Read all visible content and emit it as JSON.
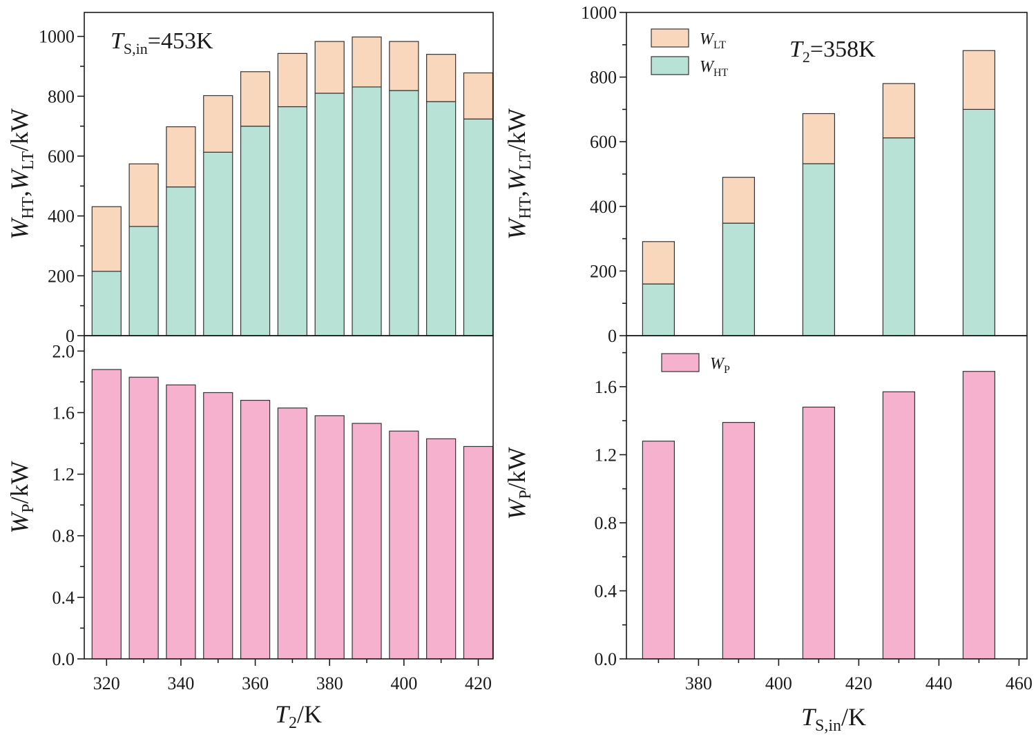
{
  "colors": {
    "ht": "#b8e2d6",
    "lt": "#f9d7bd",
    "p": "#f6b1cf"
  },
  "chart_data": [
    {
      "id": "left",
      "type": "bar",
      "stacked_top": {
        "categories": [
          320,
          330,
          340,
          350,
          360,
          370,
          380,
          390,
          400,
          410,
          420
        ],
        "series": [
          {
            "name": "W_HT",
            "values": [
              215,
              365,
              497,
              613,
              700,
              765,
              810,
              831,
              819,
              782,
              724
            ]
          },
          {
            "name": "W_LT",
            "values": [
              216,
              209,
              201,
              189,
              182,
              178,
              173,
              167,
              164,
              158,
              154
            ]
          }
        ],
        "ylim": [
          0,
          1080
        ],
        "yticks": [
          0,
          200,
          400,
          600,
          800,
          1000
        ],
        "ylabel": {
          "main": "W",
          "sub1": "HT",
          "sep": ",",
          "main2": "W",
          "sub2": "LT",
          "unit": "/kW"
        },
        "annotation": {
          "main": "T",
          "sub": "S,in",
          "rest": "=453K"
        }
      },
      "bottom": {
        "series": [
          {
            "name": "W_P",
            "values": [
              1.88,
              1.83,
              1.78,
              1.73,
              1.68,
              1.63,
              1.58,
              1.53,
              1.48,
              1.43,
              1.38
            ]
          }
        ],
        "ylim": [
          0,
          2.1
        ],
        "yticks": [
          "0.0",
          "0.4",
          "0.8",
          "1.2",
          "1.6",
          "2.0"
        ],
        "ylabel": {
          "main": "W",
          "sub": "P",
          "unit": "/kW"
        }
      },
      "xlim": [
        314,
        424
      ],
      "xticks": [
        320,
        340,
        360,
        380,
        400,
        420
      ],
      "xlabel": {
        "main": "T",
        "sub": "2",
        "unit": "/K"
      }
    },
    {
      "id": "right",
      "type": "bar",
      "stacked_top": {
        "categories": [
          370,
          390,
          410,
          430,
          450
        ],
        "series": [
          {
            "name": "W_HT",
            "values": [
              160,
              348,
              532,
              612,
              700
            ]
          },
          {
            "name": "W_LT",
            "values": [
              131,
              142,
              155,
              168,
              182
            ]
          }
        ],
        "ylim": [
          0,
          1000
        ],
        "yticks": [
          0,
          200,
          400,
          600,
          800,
          1000
        ],
        "ylabel": {
          "main": "W",
          "sub1": "HT",
          "sep": ",",
          "main2": "W",
          "sub2": "LT",
          "unit": "/kW"
        },
        "annotation": {
          "main": "T",
          "sub": "2",
          "rest": "=358K"
        },
        "legend": [
          {
            "series": "W_LT",
            "main": "W",
            "sub": "LT"
          },
          {
            "series": "W_HT",
            "main": "W",
            "sub": "HT"
          }
        ]
      },
      "bottom": {
        "series": [
          {
            "name": "W_P",
            "values": [
              1.28,
              1.39,
              1.48,
              1.57,
              1.69
            ]
          }
        ],
        "ylim": [
          0,
          1.9
        ],
        "yticks": [
          "0.0",
          "0.4",
          "0.8",
          "1.2",
          "1.6"
        ],
        "ylabel": {
          "main": "W",
          "sub": "P",
          "unit": "/kW"
        },
        "legend": [
          {
            "series": "W_P",
            "main": "W",
            "sub": "P"
          }
        ]
      },
      "xlim": [
        362,
        462
      ],
      "xticks": [
        380,
        400,
        420,
        440,
        460
      ],
      "xlabel": {
        "main": "T",
        "sub": "S,in",
        "unit": "/K"
      }
    }
  ]
}
